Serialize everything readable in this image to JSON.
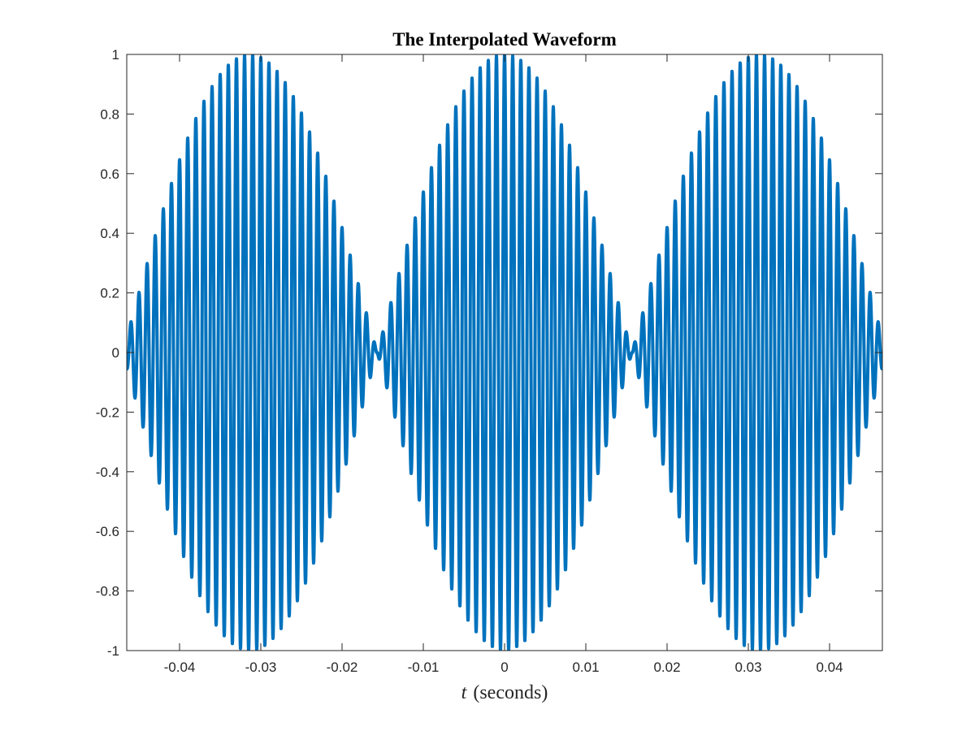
{
  "chart_data": {
    "type": "line",
    "title": "The Interpolated Waveform",
    "xlabel_var": "t",
    "xlabel_unit": "(seconds)",
    "ylabel": "",
    "xlim": [
      -0.0465,
      0.0465
    ],
    "ylim": [
      -1,
      1
    ],
    "xticks": [
      -0.04,
      -0.03,
      -0.02,
      -0.01,
      0,
      0.01,
      0.02,
      0.03,
      0.04
    ],
    "xtick_labels": [
      "-0.04",
      "-0.03",
      "-0.02",
      "-0.01",
      "0",
      "0.01",
      "0.02",
      "0.03",
      "0.04"
    ],
    "yticks": [
      1,
      0.8,
      0.6,
      0.4,
      0.2,
      0,
      -0.2,
      -0.4,
      -0.6,
      -0.8,
      -1
    ],
    "ytick_labels": [
      "1",
      "0.8",
      "0.6",
      "0.4",
      "0.2",
      "0",
      "-0.2",
      "-0.4",
      "-0.6",
      "-0.8",
      "-1"
    ],
    "grid": false,
    "series": [
      {
        "function": "cos(2*pi*carrier_hz*t) * |cos(2*pi*envelope_hz*t)|",
        "carrier_hz": 1000,
        "envelope_hz": 15.95,
        "samples": 4000,
        "color": "#0072BD"
      }
    ]
  }
}
